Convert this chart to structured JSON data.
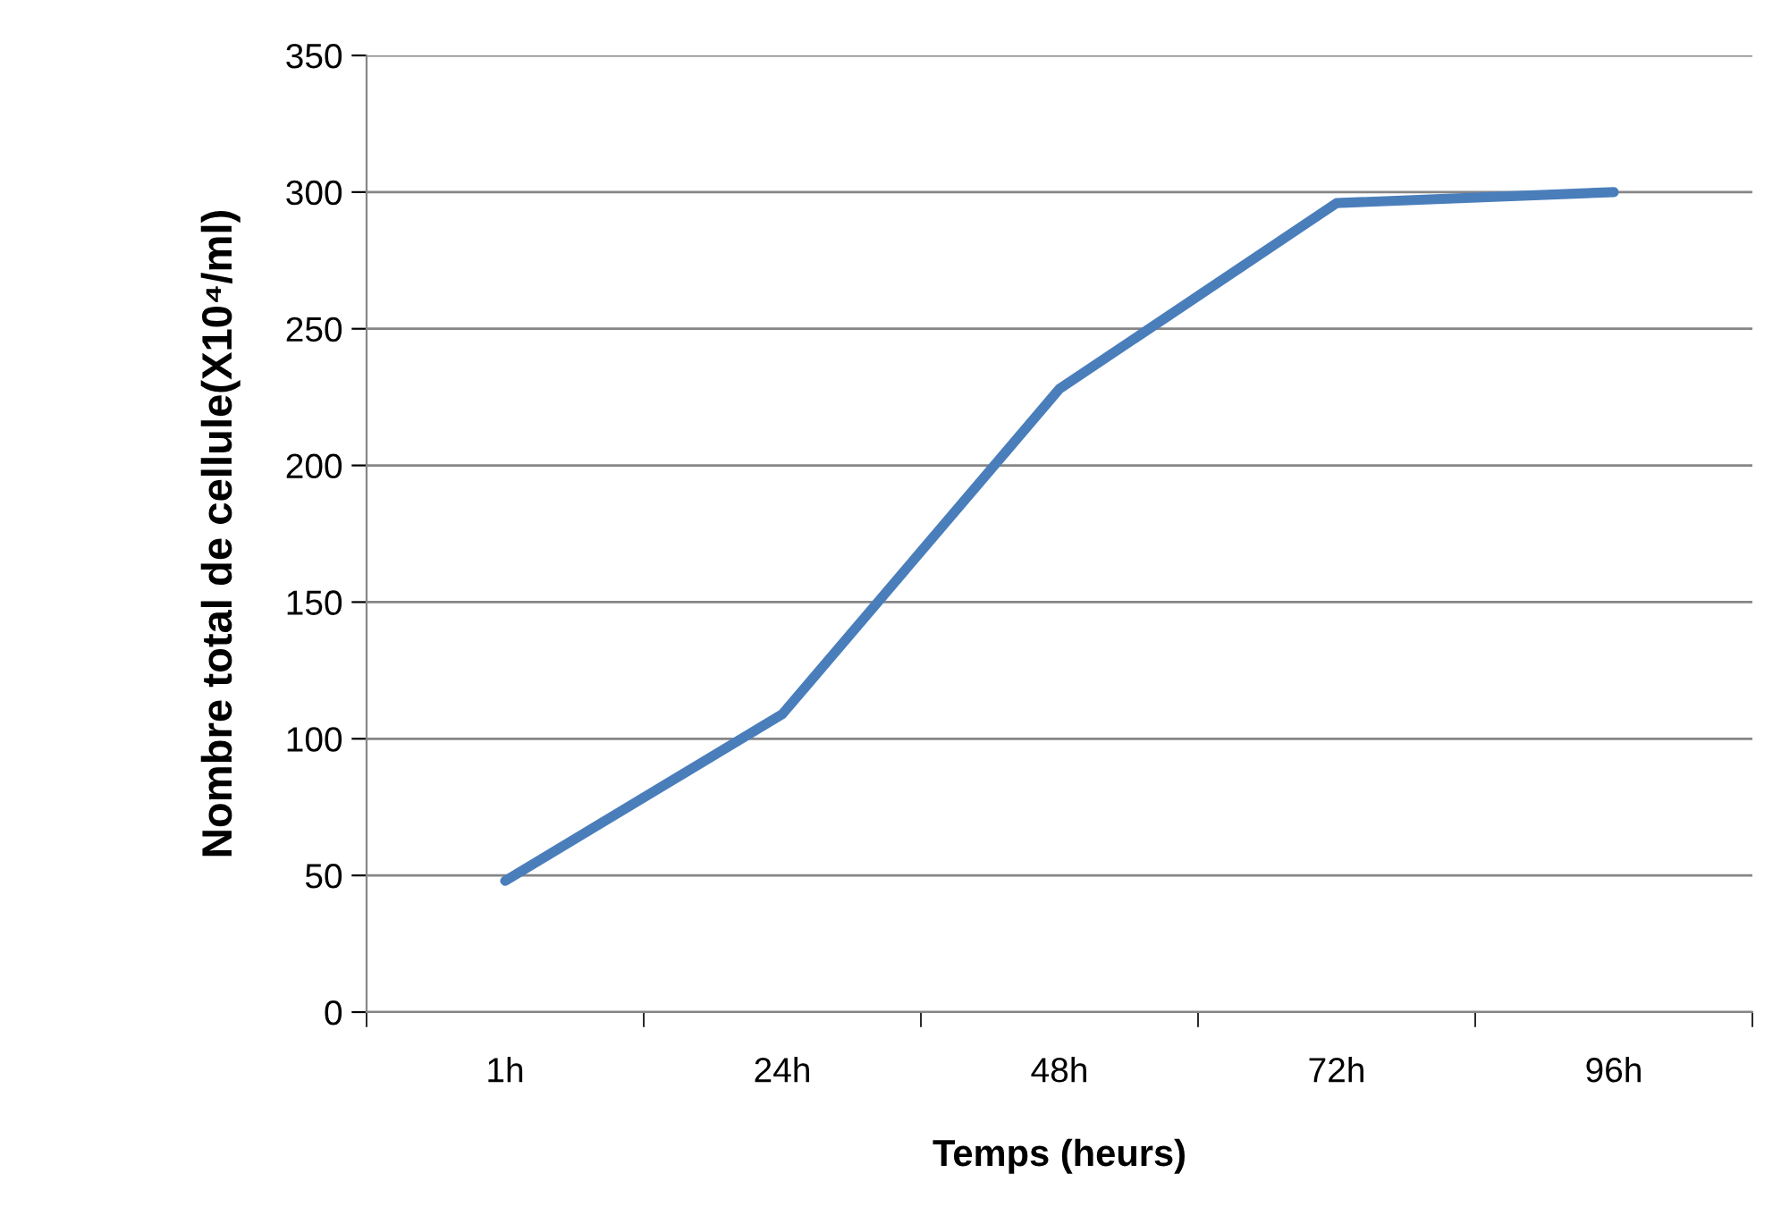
{
  "chart_data": {
    "type": "line",
    "xlabel": "Temps (heurs)",
    "ylabel": "Nombre total de cellule(X10⁴/ml)",
    "categories": [
      "1h",
      "24h",
      "48h",
      "72h",
      "96h"
    ],
    "series": [
      {
        "color": "#4a7ebb",
        "values": [
          48,
          109,
          228,
          296,
          300
        ]
      }
    ],
    "ylim": [
      0,
      350
    ],
    "yticks": [
      0,
      50,
      100,
      150,
      200,
      250,
      300,
      350
    ],
    "grid": "y",
    "marker": "none",
    "line_style": "solid"
  }
}
